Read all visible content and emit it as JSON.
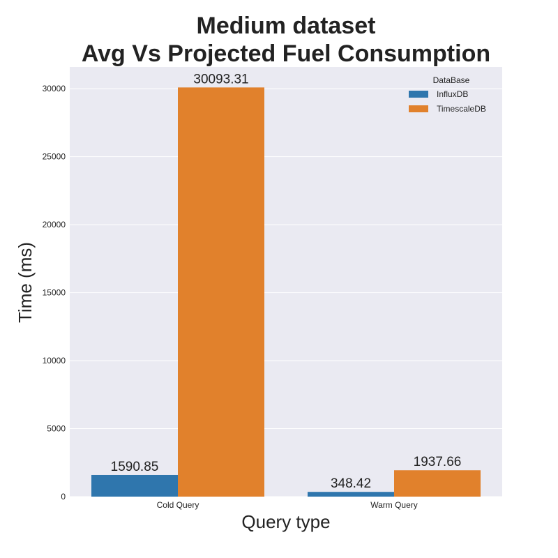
{
  "chart_data": {
    "type": "bar",
    "title_line1": "Medium dataset",
    "title_line2": "Avg Vs Projected Fuel Consumption",
    "xlabel": "Query type",
    "ylabel": "Time (ms)",
    "categories": [
      "Cold Query",
      "Warm Query"
    ],
    "series": [
      {
        "name": "InfluxDB",
        "values": [
          1590.85,
          348.42
        ],
        "labels": [
          "1590.85",
          "348.42"
        ],
        "color": "#2f76ad"
      },
      {
        "name": "TimescaleDB",
        "values": [
          30093.31,
          1937.66
        ],
        "labels": [
          "30093.31",
          "1937.66"
        ],
        "color": "#e1812c"
      }
    ],
    "ylim": [
      0,
      31600
    ],
    "yticks": [
      0,
      5000,
      10000,
      15000,
      20000,
      25000,
      30000
    ],
    "ytick_labels": [
      "0",
      "5000",
      "10000",
      "15000",
      "20000",
      "25000",
      "30000"
    ],
    "legend": {
      "title": "DataBase",
      "position": "top-right"
    },
    "grid": true,
    "background_color": "#eaeaf2"
  }
}
